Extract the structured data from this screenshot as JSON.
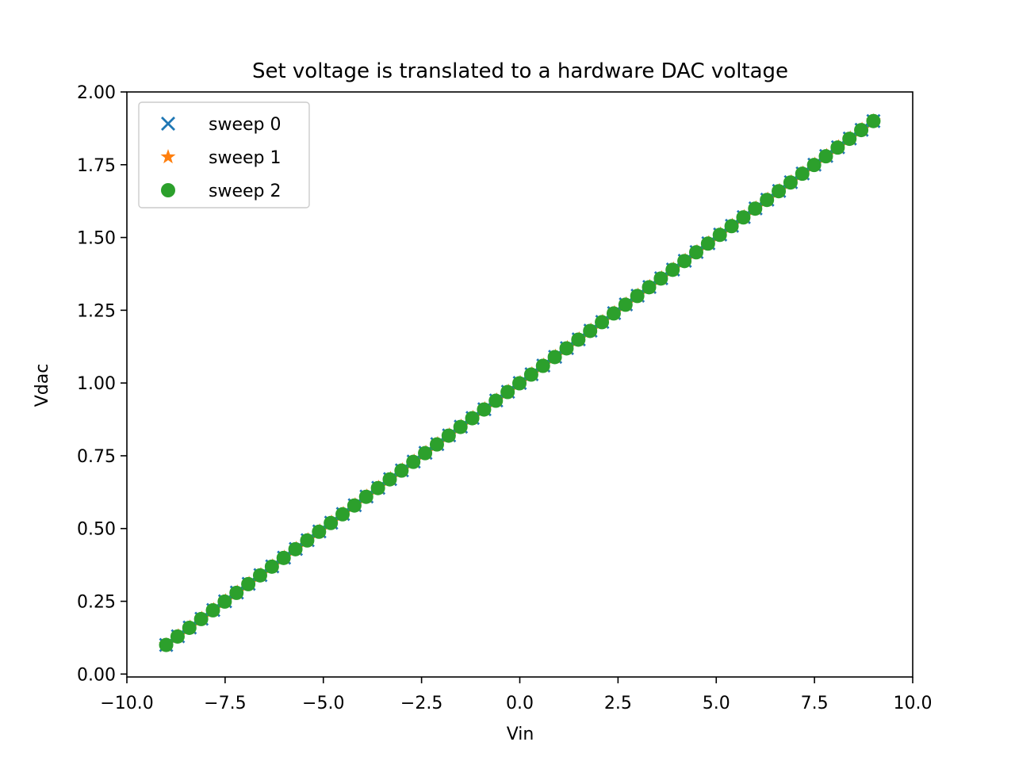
{
  "chart_data": {
    "type": "scatter",
    "title": "Set voltage is translated to a hardware DAC voltage",
    "xlabel": "Vin",
    "ylabel": "Vdac",
    "xlim": [
      -10.0,
      10.0
    ],
    "ylim": [
      -0.01,
      2.0
    ],
    "xticks": [
      -10.0,
      -7.5,
      -5.0,
      -2.5,
      0.0,
      2.5,
      5.0,
      7.5,
      10.0
    ],
    "xtick_labels": [
      "−10.0",
      "−7.5",
      "−5.0",
      "−2.5",
      "0.0",
      "2.5",
      "5.0",
      "7.5",
      "10.0"
    ],
    "yticks": [
      0.0,
      0.25,
      0.5,
      0.75,
      1.0,
      1.25,
      1.5,
      1.75,
      2.0
    ],
    "ytick_labels": [
      "0.00",
      "0.25",
      "0.50",
      "0.75",
      "1.00",
      "1.25",
      "1.50",
      "1.75",
      "2.00"
    ],
    "grid": false,
    "legend_position": "top-left",
    "relationship": "Vdac = 1 + 0.1 * Vin",
    "x_range_sampled": [
      -9.0,
      9.0
    ],
    "samples_per_series": 61,
    "series": [
      {
        "name": "sweep 0",
        "marker": "x",
        "color": "#1f77b4"
      },
      {
        "name": "sweep 1",
        "marker": "star",
        "color": "#ff7f0e"
      },
      {
        "name": "sweep 2",
        "marker": "circle",
        "color": "#2ca02c"
      }
    ]
  }
}
